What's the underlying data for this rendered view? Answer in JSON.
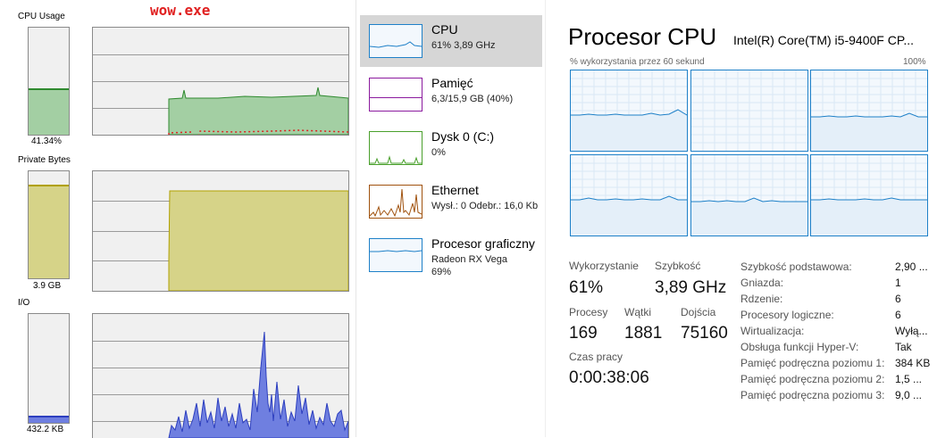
{
  "left_panel": {
    "window_label": "wow.exe",
    "cpu": {
      "title": "CPU Usage",
      "value": "41.34%",
      "level": 0.4134,
      "color": "#2f8a2f",
      "fill": "#a3cfa3"
    },
    "private_bytes": {
      "title": "Private Bytes",
      "value": "3.9 GB",
      "level": 0.88,
      "color": "#b0a000",
      "fill": "#d6d388"
    },
    "io": {
      "title": "I/O",
      "value": "432.2  KB",
      "level": 0.1,
      "color": "#2d3fbf",
      "fill": "#6f7fe0"
    }
  },
  "nav": {
    "items": [
      {
        "title": "CPU",
        "sub": "61% 3,89 GHz",
        "sub2": "",
        "color": "#1e80c8",
        "selected": true
      },
      {
        "title": "Pamięć",
        "sub": "6,3/15,9 GB (40%)",
        "sub2": "",
        "color": "#8b1a9e",
        "selected": false
      },
      {
        "title": "Dysk 0 (C:)",
        "sub": "0%",
        "sub2": "",
        "color": "#4aa02c",
        "selected": false
      },
      {
        "title": "Ethernet",
        "sub": "Wysł.: 0 Odebr.: 16,0 Kb",
        "sub2": "",
        "color": "#a0520e",
        "selected": false
      },
      {
        "title": "Procesor graficzny",
        "sub": "Radeon RX Vega",
        "sub2": "69%",
        "color": "#1e80c8",
        "selected": false
      }
    ]
  },
  "cpu_detail": {
    "title": "Procesor CPU",
    "model": "Intel(R) Core(TM) i5-9400F CP...",
    "graph_label": "% wykorzystania przez 60 sekund",
    "graph_max": "100%",
    "stats": {
      "usage_label": "Wykorzystanie",
      "usage_value": "61%",
      "speed_label": "Szybkość",
      "speed_value": "3,89 GHz",
      "processes_label": "Procesy",
      "processes_value": "169",
      "threads_label": "Wątki",
      "threads_value": "1881",
      "handles_label": "Dojścia",
      "handles_value": "75160",
      "uptime_label": "Czas pracy",
      "uptime_value": "0:00:38:06"
    },
    "specs": [
      {
        "k": "Szybkość podstawowa:",
        "v": "2,90 ..."
      },
      {
        "k": "Gniazda:",
        "v": "1"
      },
      {
        "k": "Rdzenie:",
        "v": "6"
      },
      {
        "k": "Procesory logiczne:",
        "v": "6"
      },
      {
        "k": "Wirtualizacja:",
        "v": "Wyłą..."
      },
      {
        "k": "Obsługa funkcji Hyper-V:",
        "v": "Tak"
      },
      {
        "k": "Pamięć podręczna poziomu 1:",
        "v": "384 KB"
      },
      {
        "k": "Pamięć podręczna poziomu 2:",
        "v": "1,5 ..."
      },
      {
        "k": "Pamięć podręczna poziomu 3:",
        "v": "9,0 ..."
      }
    ]
  }
}
